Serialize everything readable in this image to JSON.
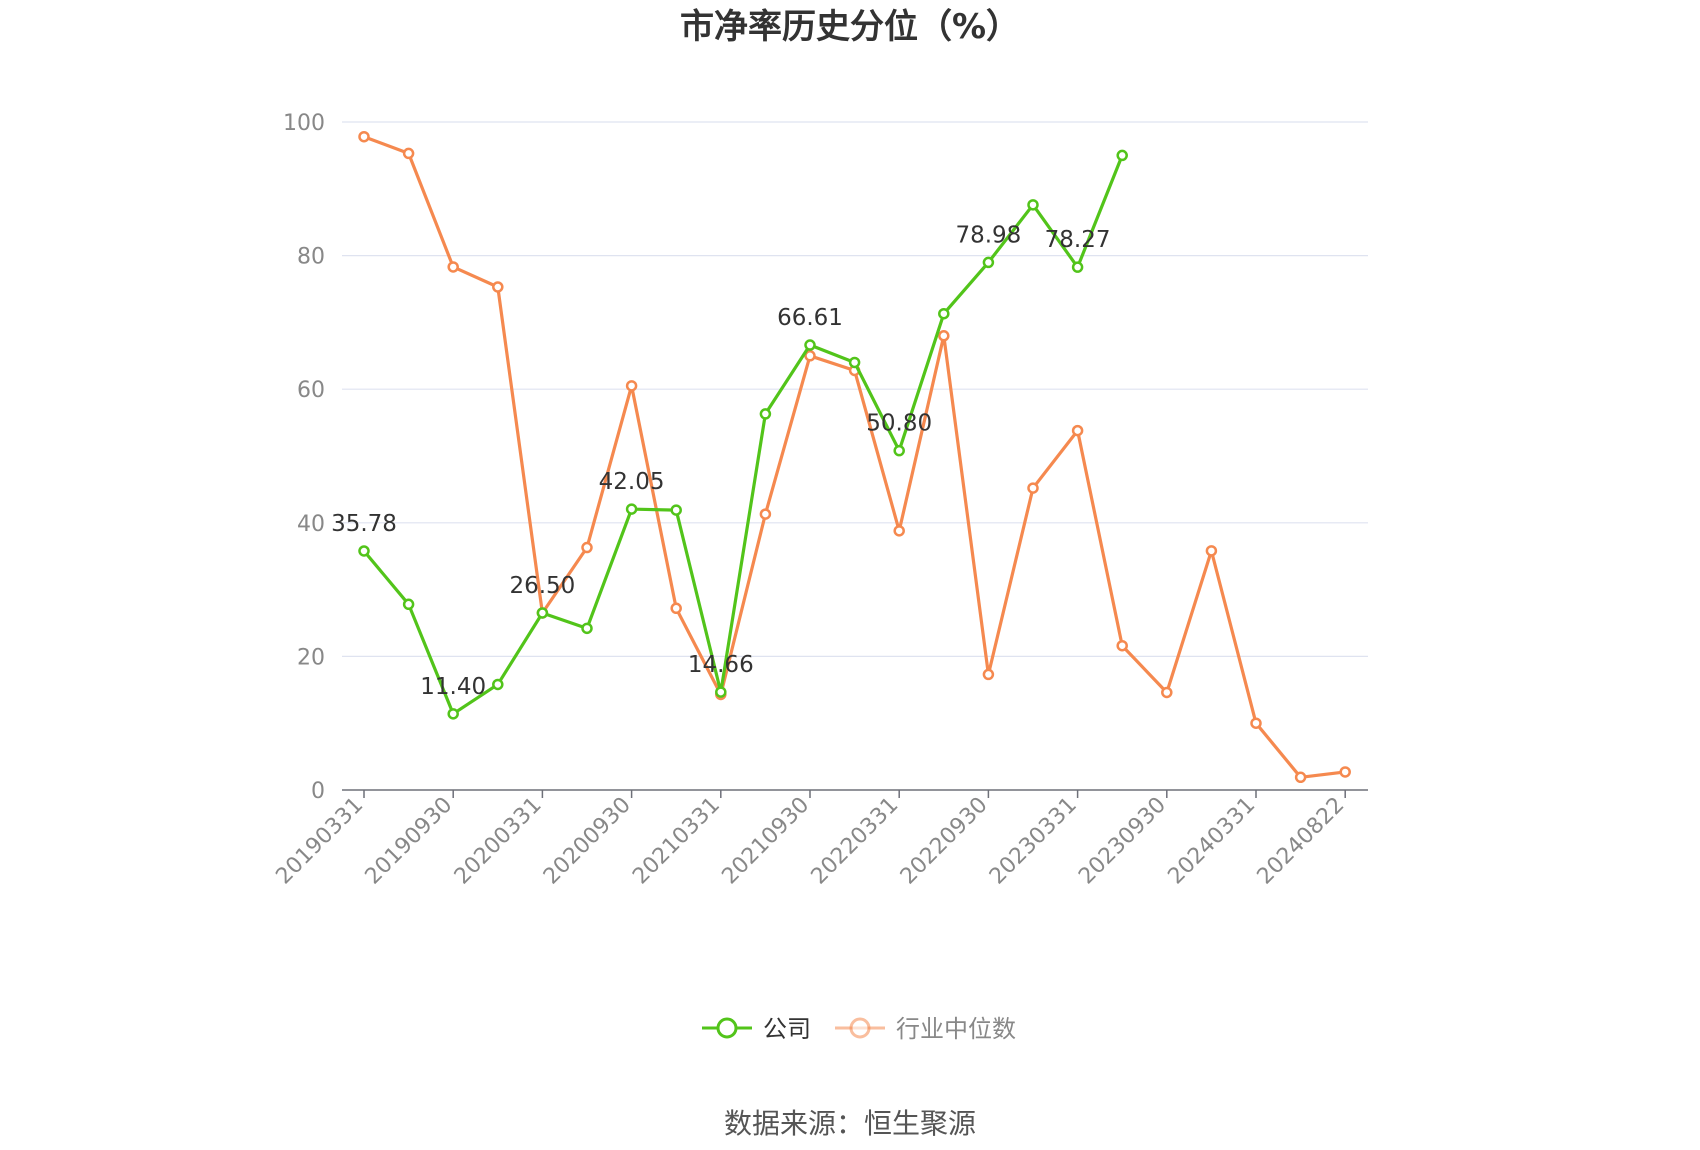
{
  "colors": {
    "company": "#52c41a",
    "industry": "#f5894f",
    "grid": "#dfe3f0",
    "axis": "#6e7079"
  },
  "chart_data": {
    "type": "line",
    "title": "市净率历史分位（%）",
    "source": "数据来源：恒生聚源",
    "ylim": [
      0,
      100
    ],
    "y_ticks": [
      0,
      20,
      40,
      60,
      80,
      100
    ],
    "x_tick_labels": [
      "20190331",
      "20190930",
      "20200331",
      "20200930",
      "20210331",
      "20210930",
      "20220331",
      "20220930",
      "20230331",
      "20230930",
      "20240331",
      "20240822"
    ],
    "legend_position": "bottom-center",
    "series": [
      {
        "name": "公司",
        "values": [
          35.78,
          27.8,
          11.4,
          15.8,
          26.5,
          24.2,
          42.05,
          41.9,
          14.66,
          56.3,
          66.61,
          64.0,
          50.8,
          71.3,
          78.98,
          87.6,
          78.27,
          95.0
        ],
        "labels": [
          "35.78",
          "",
          "11.40",
          "",
          "26.50",
          "",
          "42.05",
          "",
          "14.66",
          "",
          "66.61",
          "",
          "50.80",
          "",
          "78.98",
          "",
          "78.27",
          ""
        ]
      },
      {
        "name": "行业中位数",
        "values": [
          97.8,
          95.3,
          78.3,
          75.3,
          26.5,
          36.3,
          60.5,
          27.2,
          14.3,
          41.3,
          65.0,
          62.8,
          38.8,
          68.0,
          17.3,
          45.2,
          53.8,
          21.6,
          14.6,
          35.8,
          10.0,
          1.9,
          2.7
        ]
      }
    ]
  }
}
